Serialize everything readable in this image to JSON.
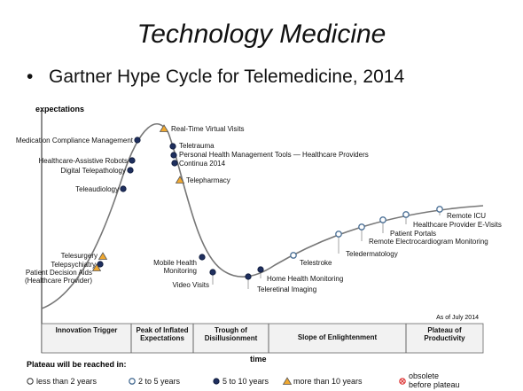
{
  "title": "Technology Medicine",
  "bullet": "Gartner Hype Cycle for Telemedicine, 2014",
  "y_axis_label": "expectations",
  "x_axis_label": "time",
  "as_of": "As of July 2014",
  "phases": [
    "Innovation Trigger",
    "Peak of Inflated Expectations",
    "Trough of Disillusionment",
    "Slope of Enlightenment",
    "Plateau of Productivity"
  ],
  "legend": {
    "title": "Plateau will be reached in:",
    "items": [
      "less than 2 years",
      "2 to 5 years",
      "5 to 10 years",
      "more than 10 years",
      "obsolete before plateau"
    ]
  },
  "technologies": [
    {
      "label": "Medication Compliance Management"
    },
    {
      "label": "Healthcare-Assistive Robots"
    },
    {
      "label": "Digital Telepathology"
    },
    {
      "label": "Teleaudiology"
    },
    {
      "label": "Telesurgery"
    },
    {
      "label": "Telepsychiatry"
    },
    {
      "label": "Patient Decision Aids (Healthcare Provider)"
    },
    {
      "label": "Real-Time Virtual Visits"
    },
    {
      "label": "Teletrauma"
    },
    {
      "label": "Personal Health Management Tools — Healthcare Providers"
    },
    {
      "label": "Continua 2014"
    },
    {
      "label": "Telepharmacy"
    },
    {
      "label": "Mobile Health Monitoring"
    },
    {
      "label": "Video Visits"
    },
    {
      "label": "Teleretinal Imaging"
    },
    {
      "label": "Home Health Monitoring"
    },
    {
      "label": "Telestroke"
    },
    {
      "label": "Teledermatology"
    },
    {
      "label": "Remote Electrocardiogram Monitoring"
    },
    {
      "label": "Patient Portals"
    },
    {
      "label": "Healthcare Provider E-Visits"
    },
    {
      "label": "Remote ICU"
    }
  ]
}
